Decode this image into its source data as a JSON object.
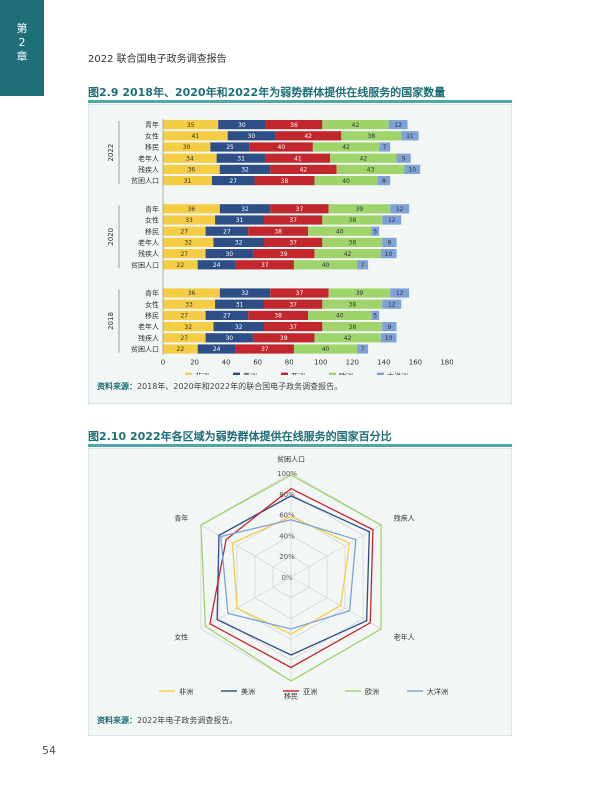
{
  "chapter": {
    "line1": "第",
    "line2": "2",
    "line3": "章"
  },
  "running_head": "2022 联合国电子政务调查报告",
  "page_number": "54",
  "figure1": {
    "number": "图2.9",
    "title": "2018年、2020年和2022年为弱势群体提供在线服务的国家数量",
    "source_label": "资料来源：",
    "source_text": "2018年、2020年和2022年的联合国电子政务调查报告。"
  },
  "figure2": {
    "number": "图2.10",
    "title": "2022年各区域为弱势群体提供在线服务的国家百分比",
    "source_label": "资料来源：",
    "source_text": "2022年电子政务调查报告。"
  },
  "chart_data": [
    {
      "type": "bar",
      "orientation": "horizontal-stacked",
      "categories": [
        "青年",
        "女性",
        "移民",
        "老年人",
        "残疾人",
        "贫困人口"
      ],
      "groups": [
        "2022",
        "2020",
        "2018"
      ],
      "series_names": [
        "非洲",
        "美洲",
        "亚洲",
        "欧洲",
        "大洋洲"
      ],
      "colors": [
        "#f5cd45",
        "#2e4e86",
        "#c1272d",
        "#9fd46a",
        "#7ea2d8"
      ],
      "values": {
        "2022": [
          [
            35,
            30,
            36,
            42,
            12
          ],
          [
            41,
            30,
            42,
            38,
            11
          ],
          [
            30,
            25,
            40,
            42,
            7
          ],
          [
            34,
            31,
            41,
            42,
            9
          ],
          [
            36,
            32,
            42,
            43,
            10
          ],
          [
            31,
            27,
            38,
            40,
            8
          ]
        ],
        "2020": [
          [
            36,
            32,
            37,
            39,
            12
          ],
          [
            33,
            31,
            37,
            38,
            12
          ],
          [
            27,
            27,
            38,
            40,
            5
          ],
          [
            32,
            32,
            37,
            38,
            9
          ],
          [
            27,
            30,
            39,
            42,
            10
          ],
          [
            22,
            24,
            37,
            40,
            7
          ]
        ],
        "2018": [
          [
            36,
            32,
            37,
            39,
            12
          ],
          [
            33,
            31,
            37,
            38,
            12
          ],
          [
            27,
            27,
            38,
            40,
            5
          ],
          [
            32,
            32,
            37,
            38,
            9
          ],
          [
            27,
            30,
            39,
            42,
            10
          ],
          [
            22,
            24,
            37,
            40,
            7
          ]
        ]
      },
      "xticks": [
        "0",
        "20",
        "40",
        "60",
        "80",
        "100",
        "120",
        "140",
        "160",
        "180"
      ],
      "xlim": [
        0,
        180
      ]
    },
    {
      "type": "radar",
      "axes": [
        "贫困人口",
        "残疾人",
        "老年人",
        "移民",
        "女性",
        "青年"
      ],
      "rings": [
        "0%",
        "20%",
        "40%",
        "60%",
        "80%",
        "100%"
      ],
      "rlim": [
        0,
        100
      ],
      "series": [
        {
          "name": "非洲",
          "color": "#f5cd45",
          "values": [
            58,
            65,
            55,
            55,
            60,
            65
          ]
        },
        {
          "name": "美洲",
          "color": "#2e4e86",
          "values": [
            78,
            87,
            84,
            75,
            82,
            80
          ]
        },
        {
          "name": "亚洲",
          "color": "#c1272d",
          "values": [
            85,
            91,
            88,
            87,
            90,
            72
          ]
        },
        {
          "name": "欧洲",
          "color": "#9fd46a",
          "values": [
            98,
            100,
            100,
            100,
            95,
            100
          ]
        },
        {
          "name": "大洋洲",
          "color": "#7ea2d8",
          "values": [
            55,
            72,
            65,
            50,
            70,
            78
          ]
        }
      ]
    }
  ]
}
